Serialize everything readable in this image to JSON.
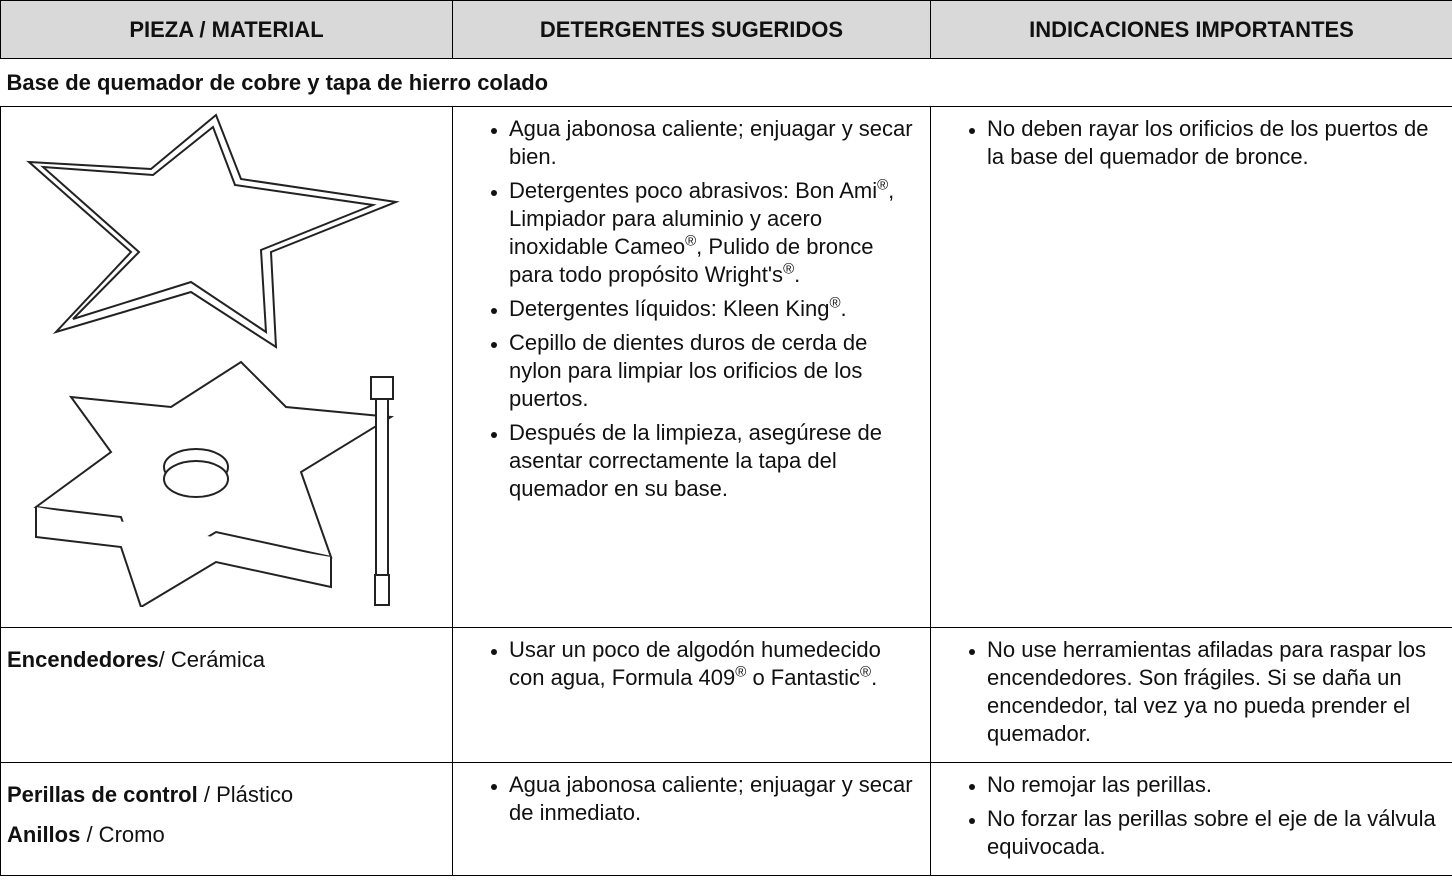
{
  "header": {
    "columns": [
      "PIEZA / MATERIAL",
      "DETERGENTES SUGERIDOS",
      "INDICACIONES IMPORTANTES"
    ]
  },
  "table": {
    "section": "Base de quemador de cobre y tapa de hierro colado",
    "rows": [
      {
        "detergents": [
          [
            "Agua jabonosa caliente; enjuagar y secar bien."
          ],
          [
            "Detergentes poco abrasivos: Bon Ami",
            "®",
            ", Limpiador para aluminio y acero inoxidable Cameo",
            "®",
            ", Pulido de bronce para todo propósito Wright's",
            "®",
            "."
          ],
          [
            "Detergentes líquidos: Kleen King",
            "®",
            "."
          ],
          [
            "Cepillo de dientes duros de cerda de nylon para limpiar los orificios de los puertos."
          ],
          [
            "Después de la limpieza, asegúrese de asentar correctamente la tapa del quemador en su base."
          ]
        ],
        "notes": [
          [
            "No deben rayar los orificios de los puertos de la base del quemador de bronce."
          ]
        ]
      },
      {
        "part": [
          {
            "bold": "Encendedores",
            "text": "/ Cerámica"
          }
        ],
        "detergents": [
          [
            "Usar un poco de algodón humedecido con agua, Formula 409",
            "®",
            " o Fantastic",
            "®",
            "."
          ]
        ],
        "notes": [
          [
            "No use herramientas afiladas para raspar los encendedores. Son frágiles. Si se daña un encendedor, tal vez ya no pueda prender el quemador."
          ]
        ]
      },
      {
        "part": [
          {
            "bold": "Perillas de control",
            "text": " / Plástico"
          },
          {
            "bold": "Anillos",
            "text": " / Cromo"
          }
        ],
        "detergents": [
          [
            "Agua jabonosa caliente; enjuagar y secar de inmediato."
          ]
        ],
        "notes": [
          [
            "No remojar las perillas."
          ],
          [
            "No forzar las perillas sobre el eje de la válvula equivocada."
          ]
        ]
      }
    ]
  }
}
